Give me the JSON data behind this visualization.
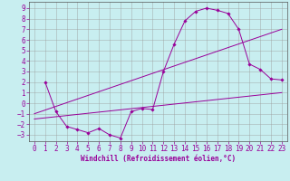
{
  "xlabel": "Windchill (Refroidissement éolien,°C)",
  "bg_color": "#c8eef0",
  "line_color": "#990099",
  "xlim": [
    -0.5,
    23.5
  ],
  "ylim": [
    -3.6,
    9.6
  ],
  "yticks": [
    -3,
    -2,
    -1,
    0,
    1,
    2,
    3,
    4,
    5,
    6,
    7,
    8,
    9
  ],
  "xticks": [
    0,
    1,
    2,
    3,
    4,
    5,
    6,
    7,
    8,
    9,
    10,
    11,
    12,
    13,
    14,
    15,
    16,
    17,
    18,
    19,
    20,
    21,
    22,
    23
  ],
  "line1_x": [
    1,
    2,
    3,
    4,
    5,
    6,
    7,
    8,
    9,
    10,
    11,
    12,
    13,
    14,
    15,
    16,
    17,
    18,
    19,
    20,
    21,
    22,
    23
  ],
  "line1_y": [
    2.0,
    -0.8,
    -2.2,
    -2.5,
    -2.8,
    -2.4,
    -3.0,
    -3.3,
    -0.8,
    -0.5,
    -0.6,
    3.0,
    5.6,
    7.8,
    8.7,
    9.0,
    8.8,
    8.5,
    7.0,
    3.7,
    3.2,
    2.3,
    2.2
  ],
  "line2_x": [
    0,
    23
  ],
  "line2_y": [
    -1.5,
    1.0
  ],
  "line3_x": [
    0,
    23
  ],
  "line3_y": [
    -1.0,
    7.0
  ],
  "grid_color": "#999999",
  "tick_fontsize": 5.5,
  "xlabel_fontsize": 5.5
}
